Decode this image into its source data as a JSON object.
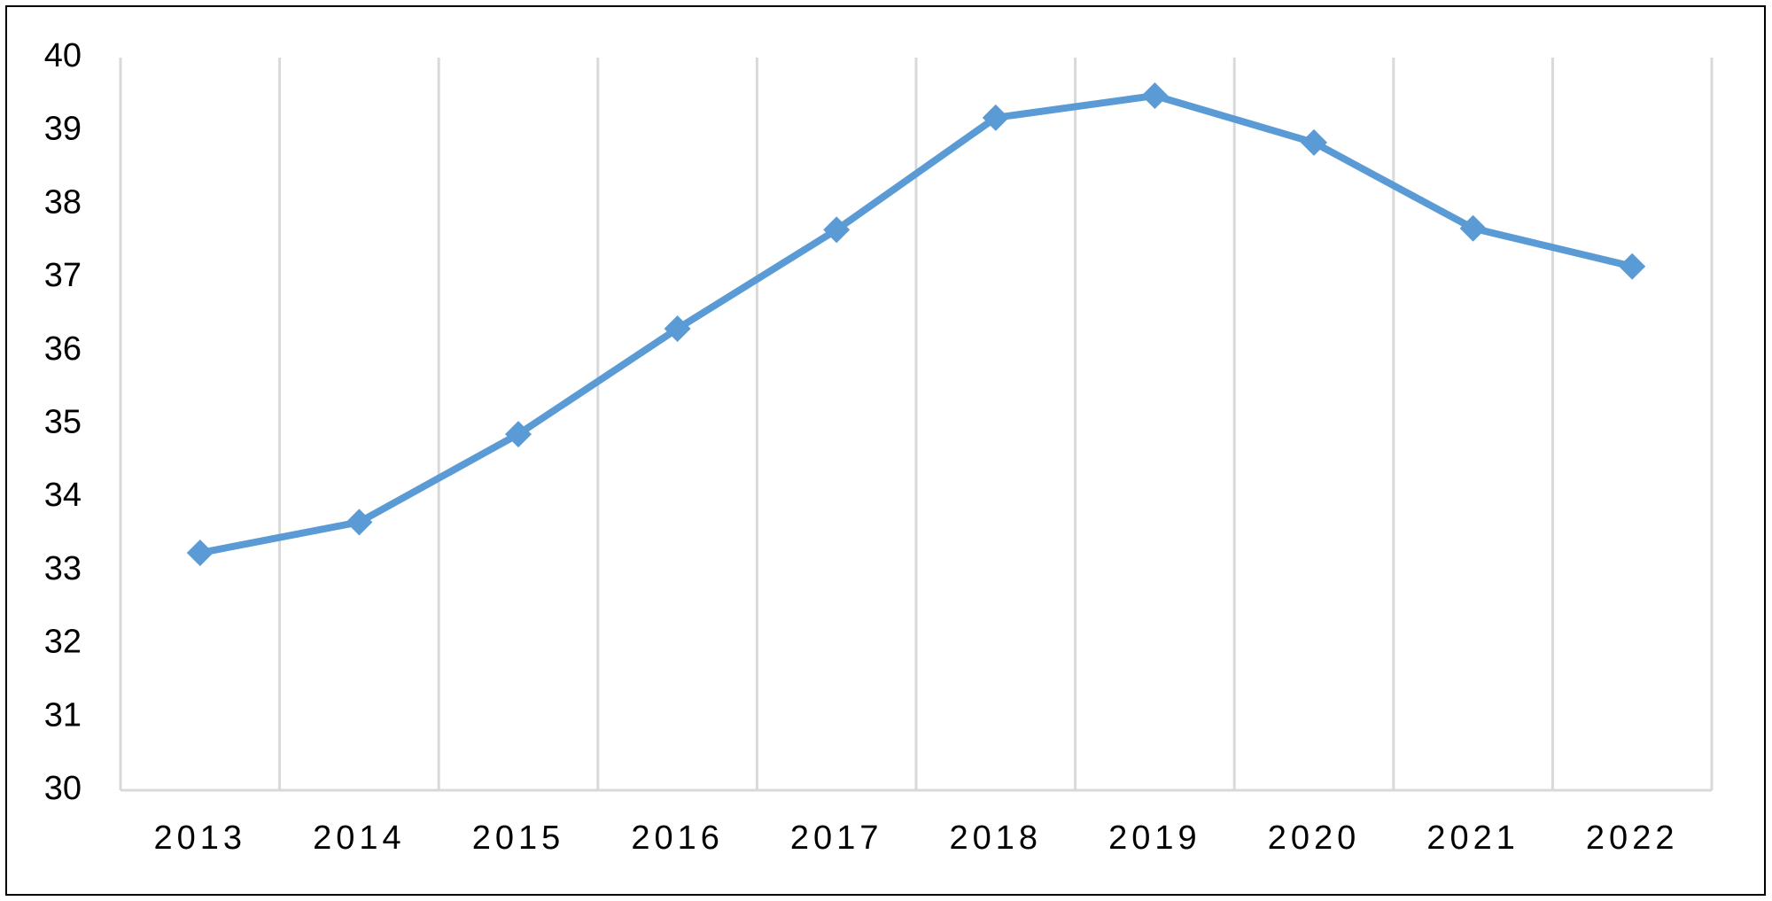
{
  "chart_data": {
    "type": "line",
    "categories": [
      "2013",
      "2014",
      "2015",
      "2016",
      "2017",
      "2018",
      "2019",
      "2020",
      "2021",
      "2022"
    ],
    "values": [
      33.24,
      33.66,
      34.86,
      36.3,
      37.65,
      39.18,
      39.48,
      38.84,
      37.67,
      37.15
    ],
    "color": "#5b9bd5",
    "ylim": [
      30,
      40
    ],
    "yticks": [
      30,
      31,
      32,
      33,
      34,
      35,
      36,
      37,
      38,
      39,
      40
    ],
    "grid": true
  }
}
